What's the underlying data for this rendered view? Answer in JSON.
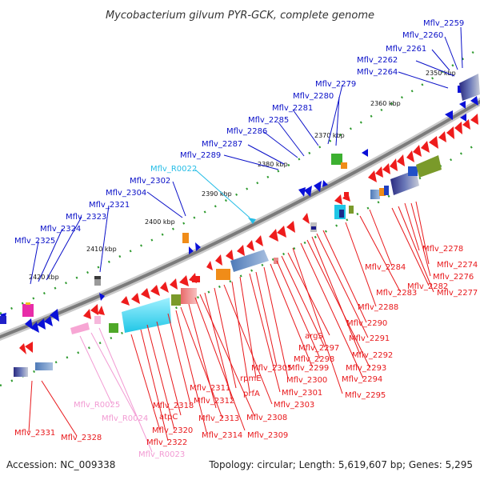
{
  "title": "Mycobacterium gilvum PYR-GCK, complete genome",
  "footer": {
    "accession": "Accession: NC_009338",
    "summary": "Topology: circular; Length: 5,619,607 bp; Genes: 5,295"
  },
  "colors": {
    "forward_label": "#0a10c8",
    "reverse_label": "#e8181b",
    "rna_forward_label": "#25bde6",
    "rna_reverse_label": "#f29ad3",
    "backbone": "#888888",
    "tick_dot": "#2e9a2e"
  },
  "ticks": [
    "2350 kbp",
    "2360 kbp",
    "2370 kbp",
    "2380 kbp",
    "2390 kbp",
    "2400 kbp",
    "2410 kbp",
    "2420 kbp"
  ],
  "upper_labels": [
    {
      "text": "Mflv_2259",
      "kind": "gene"
    },
    {
      "text": "Mflv_2260",
      "kind": "gene"
    },
    {
      "text": "Mflv_2261",
      "kind": "gene"
    },
    {
      "text": "Mflv_2262",
      "kind": "gene"
    },
    {
      "text": "Mflv_2264",
      "kind": "gene"
    },
    {
      "text": "Mflv_2279",
      "kind": "gene"
    },
    {
      "text": "Mflv_2280",
      "kind": "gene"
    },
    {
      "text": "Mflv_2281",
      "kind": "gene"
    },
    {
      "text": "Mflv_2285",
      "kind": "gene"
    },
    {
      "text": "Mflv_2286",
      "kind": "gene"
    },
    {
      "text": "Mflv_2287",
      "kind": "gene"
    },
    {
      "text": "Mflv_2289",
      "kind": "gene"
    },
    {
      "text": "Mflv_R0022",
      "kind": "rna"
    },
    {
      "text": "Mflv_2302",
      "kind": "gene"
    },
    {
      "text": "Mflv_2304",
      "kind": "gene"
    },
    {
      "text": "Mflv_2321",
      "kind": "gene"
    },
    {
      "text": "Mflv_2323",
      "kind": "gene"
    },
    {
      "text": "Mflv_2324",
      "kind": "gene"
    },
    {
      "text": "Mflv_2325",
      "kind": "gene"
    }
  ],
  "lower_labels": [
    {
      "text": "Mflv_2274",
      "kind": "gene"
    },
    {
      "text": "Mflv_2278",
      "kind": "gene"
    },
    {
      "text": "Mflv_2276",
      "kind": "gene"
    },
    {
      "text": "Mflv_2277",
      "kind": "gene"
    },
    {
      "text": "Mflv_2284",
      "kind": "gene"
    },
    {
      "text": "Mflv_2282",
      "kind": "gene"
    },
    {
      "text": "Mflv_2283",
      "kind": "gene"
    },
    {
      "text": "Mflv_2288",
      "kind": "gene"
    },
    {
      "text": "Mflv_2290",
      "kind": "gene"
    },
    {
      "text": "Mflv_2291",
      "kind": "gene"
    },
    {
      "text": "argS",
      "kind": "gene"
    },
    {
      "text": "Mflv_2297",
      "kind": "gene"
    },
    {
      "text": "Mflv_2292",
      "kind": "gene"
    },
    {
      "text": "Mflv_2298",
      "kind": "gene"
    },
    {
      "text": "Mflv_2299",
      "kind": "gene"
    },
    {
      "text": "Mflv_2293",
      "kind": "gene"
    },
    {
      "text": "Mflv_2294",
      "kind": "gene"
    },
    {
      "text": "Mflv_2300",
      "kind": "gene"
    },
    {
      "text": "Mflv_2305",
      "kind": "gene"
    },
    {
      "text": "rpmE",
      "kind": "gene"
    },
    {
      "text": "Mflv_2301",
      "kind": "gene"
    },
    {
      "text": "Mflv_2295",
      "kind": "gene"
    },
    {
      "text": "Mflv_2311",
      "kind": "gene"
    },
    {
      "text": "prfA",
      "kind": "gene"
    },
    {
      "text": "Mflv_2303",
      "kind": "gene"
    },
    {
      "text": "Mflv_2312",
      "kind": "gene"
    },
    {
      "text": "Mflv_2318",
      "kind": "gene"
    },
    {
      "text": "Mflv_R0025",
      "kind": "rna"
    },
    {
      "text": "atpC",
      "kind": "gene"
    },
    {
      "text": "Mflv_2308",
      "kind": "gene"
    },
    {
      "text": "Mflv_2313",
      "kind": "gene"
    },
    {
      "text": "Mflv_R0024",
      "kind": "rna"
    },
    {
      "text": "Mflv_2320",
      "kind": "gene"
    },
    {
      "text": "Mflv_2314",
      "kind": "gene"
    },
    {
      "text": "Mflv_2309",
      "kind": "gene"
    },
    {
      "text": "Mflv_2331",
      "kind": "gene"
    },
    {
      "text": "Mflv_2328",
      "kind": "gene"
    },
    {
      "text": "Mflv_2322",
      "kind": "gene"
    },
    {
      "text": "Mflv_R0023",
      "kind": "rna"
    }
  ]
}
